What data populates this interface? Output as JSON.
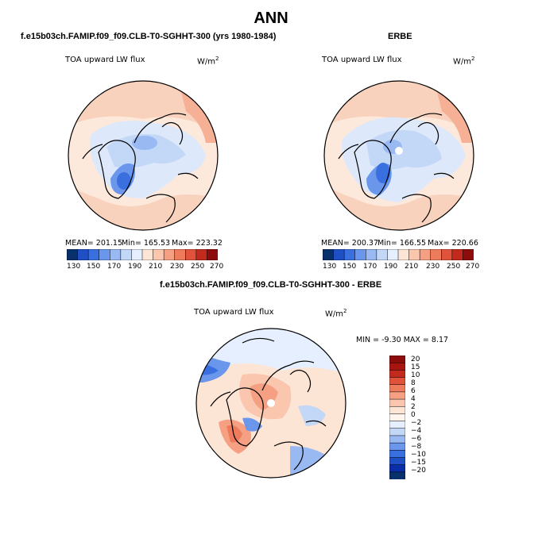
{
  "figure": {
    "title": "ANN",
    "palette_hbar": [
      "#08306b",
      "#1f4fc4",
      "#3a6fe0",
      "#6a96ec",
      "#98b9f2",
      "#c3d7f7",
      "#e6efff",
      "#fde5d6",
      "#fac6ad",
      "#f5a083",
      "#ee7b5c",
      "#e0523a",
      "#c32a1e",
      "#8c0d0c"
    ],
    "palette_vbar": [
      "#08306b",
      "#0a2ea8",
      "#1f4fc4",
      "#3a6fe0",
      "#6a96ec",
      "#98b9f2",
      "#c3d7f7",
      "#e6efff",
      "#fff4ee",
      "#fde5d6",
      "#fac6ad",
      "#f5a083",
      "#ee7b5c",
      "#e0523a",
      "#c32a1e",
      "#a8140f",
      "#8c0d0c"
    ]
  },
  "panel1": {
    "header": "f.e15b03ch.FAMIP.f09_f09.CLB-T0-SGHHT-300 (yrs 1980-1984)",
    "variable": "TOA upward LW flux",
    "units": "W/m",
    "units_sup": "2",
    "mean": "MEAN= 201.15",
    "min": "Min= 165.53",
    "max": "Max= 223.32",
    "ticks": [
      "130",
      "150",
      "170",
      "190",
      "210",
      "230",
      "250",
      "270"
    ]
  },
  "panel2": {
    "header": "ERBE",
    "variable": "TOA upward LW flux",
    "units": "W/m",
    "units_sup": "2",
    "mean": "MEAN= 200.37",
    "min": "Min= 166.55",
    "max": "Max= 220.66",
    "ticks": [
      "130",
      "150",
      "170",
      "190",
      "210",
      "230",
      "250",
      "270"
    ]
  },
  "panel3": {
    "header": "f.e15b03ch.FAMIP.f09_f09.CLB-T0-SGHHT-300 - ERBE",
    "variable": "TOA upward LW flux",
    "units": "W/m",
    "units_sup": "2",
    "minmax": "MIN =  -9.30 MAX =   8.17",
    "ticks": [
      "20",
      "15",
      "10",
      "8",
      "6",
      "4",
      "2",
      "0",
      "−2",
      "−4",
      "−6",
      "−8",
      "−10",
      "−15",
      "−20"
    ]
  }
}
